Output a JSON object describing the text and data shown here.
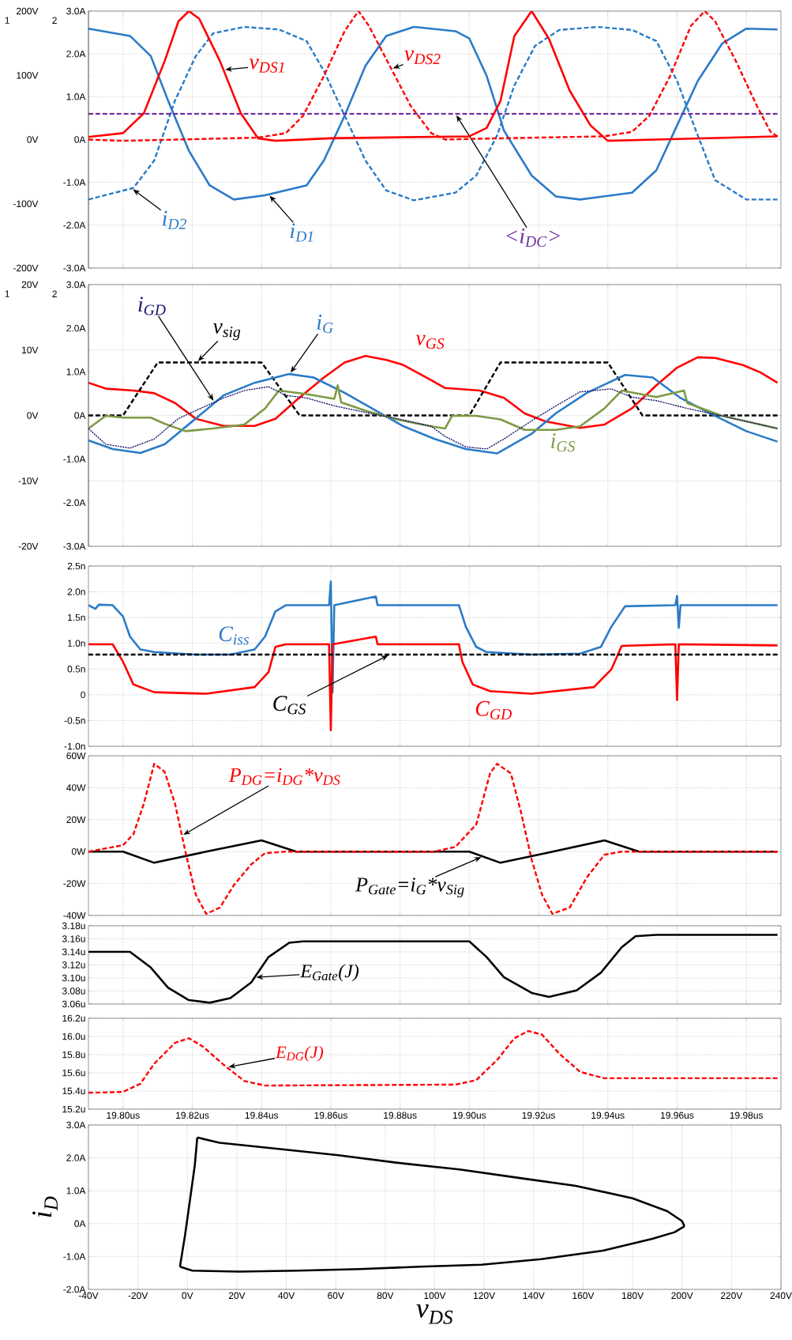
{
  "chart_data": [
    {
      "type": "line",
      "xlim": [
        19.79,
        19.99
      ],
      "ylim": [
        -3,
        3
      ],
      "y2lim": [
        -200,
        200
      ],
      "grid": true,
      "ylabel": "2",
      "y2label": "1",
      "tick_labels": "y",
      "xticks": [
        19.8,
        19.82,
        19.84,
        19.86,
        19.88,
        19.9,
        19.92,
        19.94,
        19.96,
        19.98
      ],
      "yticks": [
        {
          "value": -3,
          "label": "-3.0A"
        },
        {
          "value": -2,
          "label": "-2.0A"
        },
        {
          "value": -1,
          "label": "-1.0A"
        },
        {
          "value": 0,
          "label": "0A"
        },
        {
          "value": 1,
          "label": "1.0A"
        },
        {
          "value": 2,
          "label": "2.0A"
        },
        {
          "value": 3,
          "label": "3.0A"
        }
      ],
      "y2ticks": [
        {
          "value": -200,
          "label": "-200V"
        },
        {
          "value": -100,
          "label": "-100V"
        },
        {
          "value": 0,
          "label": "0V"
        },
        {
          "value": 100,
          "label": "100V"
        },
        {
          "value": 200,
          "label": "200V"
        }
      ],
      "series": [
        {
          "name": "v$_{DS1}$",
          "color": "#ff0000",
          "axis": "y2",
          "line_style": "solid",
          "x": [
            19.79,
            19.8,
            19.806,
            19.812,
            19.816,
            19.819,
            19.822,
            19.828,
            19.834,
            19.839,
            19.844,
            19.86,
            19.9,
            19.905,
            19.909,
            19.913,
            19.918,
            19.923,
            19.929,
            19.935,
            19.94,
            19.954,
            19.989
          ],
          "values": [
            4,
            10,
            41,
            122,
            184,
            200,
            188,
            122,
            41,
            2,
            -2,
            2,
            5,
            18,
            60,
            161,
            200,
            157,
            76,
            22,
            -2,
            0,
            5
          ]
        },
        {
          "name": "v$_{DS2}$",
          "color": "#ff0000",
          "axis": "y2",
          "line_style": "dashed",
          "x": [
            19.79,
            19.8,
            19.839,
            19.847,
            19.852,
            19.858,
            19.864,
            19.868,
            19.871,
            19.877,
            19.883,
            19.889,
            19.893,
            19.9,
            19.939,
            19.947,
            19.952,
            19.958,
            19.964,
            19.968,
            19.971,
            19.977,
            19.983,
            19.987,
            19.989
          ],
          "values": [
            0,
            -2,
            3,
            10,
            37,
            99,
            169,
            200,
            177,
            115,
            53,
            10,
            0,
            1,
            5,
            12,
            37,
            99,
            177,
            200,
            184,
            122,
            53,
            12,
            5
          ]
        },
        {
          "name": "i$_{D1}$",
          "color": "#2b7bc8",
          "line_style": "solid",
          "x": [
            19.79,
            19.802,
            19.808,
            19.813,
            19.819,
            19.825,
            19.832,
            19.841,
            19.853,
            19.858,
            19.864,
            19.87,
            19.876,
            19.884,
            19.896,
            19.9,
            19.905,
            19.91,
            19.918,
            19.925,
            19.932,
            19.947,
            19.954,
            19.96,
            19.966,
            19.973,
            19.98,
            19.989
          ],
          "values": [
            2.59,
            2.42,
            1.95,
            0.91,
            -0.26,
            -1.07,
            -1.4,
            -1.3,
            -1.07,
            -0.49,
            0.56,
            1.72,
            2.42,
            2.63,
            2.53,
            2.36,
            1.49,
            0.21,
            -0.84,
            -1.33,
            -1.4,
            -1.24,
            -0.72,
            0.33,
            1.37,
            2.24,
            2.59,
            2.57
          ]
        },
        {
          "name": "i$_{D2}$",
          "color": "#2b7bc8",
          "line_style": "dashed",
          "x": [
            19.79,
            19.803,
            19.809,
            19.815,
            19.821,
            19.826,
            19.835,
            19.845,
            19.853,
            19.858,
            19.864,
            19.87,
            19.876,
            19.884,
            19.896,
            19.902,
            19.908,
            19.913,
            19.919,
            19.926,
            19.937,
            19.947,
            19.954,
            19.96,
            19.966,
            19.971,
            19.98,
            19.989
          ],
          "values": [
            -1.4,
            -1.13,
            -0.49,
            0.91,
            1.95,
            2.48,
            2.63,
            2.57,
            2.3,
            1.6,
            0.56,
            -0.49,
            -1.19,
            -1.42,
            -1.24,
            -0.84,
            0.09,
            1.26,
            2.19,
            2.56,
            2.63,
            2.56,
            2.3,
            1.37,
            0.09,
            -0.95,
            -1.4,
            -1.4
          ]
        },
        {
          "name": "<i$_{DC}$>",
          "color": "#7030a0",
          "line_style": "dashed",
          "x": [
            19.79,
            19.989
          ],
          "values": [
            0.6,
            0.6
          ]
        }
      ]
    },
    {
      "type": "line",
      "xlim": [
        19.79,
        19.99
      ],
      "ylim": [
        -20,
        20
      ],
      "y2lim": [
        -3,
        3
      ],
      "grid": true,
      "ylabel": "1",
      "y2label": "2",
      "tick_labels": "y",
      "xticks": [
        19.8,
        19.82,
        19.84,
        19.86,
        19.88,
        19.9,
        19.92,
        19.94,
        19.96,
        19.98
      ],
      "yticks": [
        {
          "value": -20,
          "label": "-20V"
        },
        {
          "value": -10,
          "label": "-10V"
        },
        {
          "value": 0,
          "label": "0V"
        },
        {
          "value": 10,
          "label": "10V"
        },
        {
          "value": 20,
          "label": "20V"
        }
      ],
      "y2ticks": [
        {
          "value": -3,
          "label": "-3.0A"
        },
        {
          "value": -2,
          "label": "-2.0A"
        },
        {
          "value": -1,
          "label": "-1.0A"
        },
        {
          "value": 0,
          "label": "0A"
        },
        {
          "value": 1,
          "label": "1.0A"
        },
        {
          "value": 2,
          "label": "2.0A"
        },
        {
          "value": 3,
          "label": "3.0A"
        }
      ],
      "series": [
        {
          "name": "i$_{GD}$",
          "color": "#1a1a6e",
          "axis": "y2",
          "line_style": "dotted",
          "x": [
            19.79,
            19.795,
            19.802,
            19.809,
            19.816,
            19.824,
            19.829,
            19.835,
            19.842,
            19.847,
            19.853,
            19.861,
            19.87,
            19.879,
            19.889,
            19.893,
            19.899,
            19.905,
            19.91,
            19.919,
            19.925,
            19.932,
            19.941,
            19.947,
            19.954,
            19.963,
            19.973,
            19.983,
            19.989
          ],
          "values": [
            -0.3,
            -0.66,
            -0.75,
            -0.54,
            -0.07,
            0.22,
            0.4,
            0.57,
            0.66,
            0.46,
            0.4,
            0.22,
            0.07,
            -0.07,
            -0.25,
            -0.48,
            -0.72,
            -0.77,
            -0.54,
            -0.07,
            0.22,
            0.54,
            0.61,
            0.42,
            0.34,
            0.16,
            -0.01,
            -0.19,
            -0.3
          ]
        },
        {
          "name": "v$_{sig}$",
          "color": "#000000",
          "line_style": "dashed",
          "x": [
            19.79,
            19.8,
            19.81,
            19.84,
            19.851,
            19.9,
            19.909,
            19.94,
            19.95,
            19.989
          ],
          "values": [
            0,
            0,
            8.1,
            8.1,
            0,
            0,
            8.1,
            8.1,
            0,
            0
          ]
        },
        {
          "name": "i$_{G}$",
          "color": "#2b7bc8",
          "axis": "y2",
          "line_style": "solid",
          "x": [
            19.79,
            19.797,
            19.805,
            19.812,
            19.821,
            19.829,
            19.838,
            19.848,
            19.855,
            19.864,
            19.873,
            19.881,
            19.89,
            19.899,
            19.908,
            19.918,
            19.925,
            19.934,
            19.945,
            19.953,
            19.961,
            19.971,
            19.98,
            19.989
          ],
          "values": [
            -0.57,
            -0.77,
            -0.86,
            -0.66,
            -0.07,
            0.46,
            0.75,
            0.95,
            0.87,
            0.52,
            0.11,
            -0.25,
            -0.54,
            -0.77,
            -0.87,
            -0.42,
            0.05,
            0.52,
            0.93,
            0.87,
            0.4,
            -0.01,
            -0.36,
            -0.6
          ]
        },
        {
          "name": "v$_{GS}$",
          "color": "#ff0000",
          "line_style": "solid",
          "x": [
            19.79,
            19.795,
            19.803,
            19.809,
            19.815,
            19.821,
            19.829,
            19.838,
            19.844,
            19.85,
            19.858,
            19.864,
            19.87,
            19.876,
            19.881,
            19.889,
            19.893,
            19.903,
            19.91,
            19.916,
            19.922,
            19.932,
            19.939,
            19.947,
            19.954,
            19.96,
            19.966,
            19.971,
            19.979,
            19.984,
            19.989
          ],
          "values": [
            5.0,
            4.1,
            3.8,
            3.4,
            1.9,
            -0.5,
            -1.6,
            -1.6,
            -0.5,
            2.3,
            5.8,
            8.1,
            9.1,
            8.5,
            7.7,
            5.4,
            4.2,
            3.8,
            2.7,
            0.3,
            -0.9,
            -1.9,
            -1.4,
            1.1,
            4.6,
            7.3,
            8.9,
            8.8,
            7.7,
            6.6,
            5.0
          ]
        },
        {
          "name": "i$_{GS}$",
          "color": "#7f9a44",
          "axis": "y2",
          "line_style": "solid",
          "x": [
            19.79,
            19.795,
            19.8,
            19.808,
            19.812,
            19.818,
            19.826,
            19.835,
            19.841,
            19.845,
            19.853,
            19.861,
            19.862,
            19.863,
            19.87,
            19.879,
            19.889,
            19.893,
            19.895,
            19.902,
            19.909,
            19.916,
            19.925,
            19.932,
            19.939,
            19.944,
            19.954,
            19.962,
            19.963,
            19.973,
            19.989
          ],
          "values": [
            -0.3,
            -0.01,
            -0.05,
            -0.05,
            -0.19,
            -0.36,
            -0.3,
            -0.21,
            0.16,
            0.57,
            0.49,
            0.38,
            0.69,
            0.3,
            0.11,
            -0.09,
            -0.25,
            -0.3,
            -0.01,
            -0.01,
            -0.09,
            -0.33,
            -0.33,
            -0.25,
            0.16,
            0.57,
            0.42,
            0.57,
            0.28,
            -0.01,
            -0.3
          ]
        }
      ]
    },
    {
      "type": "line",
      "xlim": [
        19.79,
        19.99
      ],
      "ylim": [
        -1,
        2.5
      ],
      "grid": true,
      "tick_labels": "y",
      "xticks": [
        19.8,
        19.82,
        19.84,
        19.86,
        19.88,
        19.9,
        19.92,
        19.94,
        19.96,
        19.98
      ],
      "yticks": [
        {
          "value": -1,
          "label": "-1.0n"
        },
        {
          "value": -0.5,
          "label": "-0.5n"
        },
        0,
        {
          "value": 0.5,
          "label": "0.5n"
        },
        {
          "value": 1,
          "label": "1.0n"
        },
        {
          "value": 1.5,
          "label": "1.5n"
        },
        {
          "value": 2,
          "label": "2.0n"
        },
        {
          "value": 2.5,
          "label": "2.5n"
        }
      ],
      "series": [
        {
          "name": "C$_{iss}$",
          "color": "#2b7bc8",
          "line_style": "solid",
          "x": [
            19.79,
            19.792,
            19.793,
            19.797,
            19.8,
            19.802,
            19.805,
            19.809,
            19.821,
            19.831,
            19.838,
            19.841,
            19.844,
            19.847,
            19.8595,
            19.86,
            19.8605,
            19.861,
            19.873,
            19.8735,
            19.897,
            19.899,
            19.902,
            19.905,
            19.918,
            19.932,
            19.938,
            19.941,
            19.945,
            19.9595,
            19.96,
            19.9605,
            19.961,
            19.989
          ],
          "values": [
            1.74,
            1.67,
            1.75,
            1.74,
            1.52,
            1.13,
            0.88,
            0.83,
            0.78,
            0.78,
            0.88,
            1.13,
            1.62,
            1.74,
            1.74,
            2.2,
            0.05,
            1.74,
            1.91,
            1.74,
            1.74,
            1.32,
            0.93,
            0.83,
            0.78,
            0.8,
            0.93,
            1.32,
            1.72,
            1.74,
            1.92,
            1.3,
            1.74,
            1.74
          ]
        },
        {
          "name": "C$_{GD}$",
          "color": "#ff0000",
          "line_style": "solid",
          "x": [
            19.79,
            19.797,
            19.8,
            19.803,
            19.809,
            19.824,
            19.838,
            19.842,
            19.844,
            19.847,
            19.8595,
            19.86,
            19.8605,
            19.873,
            19.8735,
            19.897,
            19.898,
            19.901,
            19.906,
            19.918,
            19.936,
            19.941,
            19.944,
            19.9595,
            19.96,
            19.9605,
            19.989
          ],
          "values": [
            0.98,
            0.98,
            0.64,
            0.2,
            0.05,
            0.02,
            0.15,
            0.44,
            0.93,
            0.98,
            0.98,
            -0.69,
            0.98,
            1.13,
            0.98,
            0.98,
            0.64,
            0.2,
            0.07,
            0.02,
            0.15,
            0.49,
            0.95,
            0.98,
            -0.1,
            0.98,
            0.96
          ]
        },
        {
          "name": "C$_{GS}$",
          "color": "#000000",
          "line_style": "dashed",
          "x": [
            19.79,
            19.989
          ],
          "values": [
            0.78,
            0.78
          ]
        }
      ]
    },
    {
      "type": "line",
      "xlim": [
        19.79,
        19.99
      ],
      "ylim": [
        -40,
        60
      ],
      "grid": true,
      "tick_labels": "y",
      "xticks": [
        19.8,
        19.82,
        19.84,
        19.86,
        19.88,
        19.9,
        19.92,
        19.94,
        19.96,
        19.98
      ],
      "yticks": [
        {
          "value": -40,
          "label": "-40W"
        },
        {
          "value": -20,
          "label": "-20W"
        },
        {
          "value": 0,
          "label": "0W"
        },
        {
          "value": 20,
          "label": "20W"
        },
        {
          "value": 40,
          "label": "40W"
        },
        {
          "value": 60,
          "label": "60W"
        }
      ],
      "series": [
        {
          "name": "P$_{DG}$=i$_{DG}$*v$_{DS}$",
          "color": "#ff0000",
          "line_style": "dashed",
          "x": [
            19.79,
            19.8,
            19.803,
            19.806,
            19.809,
            19.812,
            19.815,
            19.818,
            19.821,
            19.824,
            19.828,
            19.832,
            19.837,
            19.841,
            19.847,
            19.89,
            19.896,
            19.902,
            19.906,
            19.908,
            19.912,
            19.915,
            19.918,
            19.921,
            19.924,
            19.929,
            19.934,
            19.939,
            19.944,
            19.989
          ],
          "values": [
            0,
            4,
            11,
            30,
            55,
            50,
            30,
            0,
            -27,
            -39,
            -35,
            -21,
            -8,
            -1,
            0,
            0,
            3,
            17,
            49,
            55,
            49,
            24,
            -5,
            -27,
            -39,
            -35,
            -16,
            -2,
            0,
            0
          ]
        },
        {
          "name": "P$_{Gate}$=i$_{G}$*v$_{Sig}$",
          "color": "#000000",
          "line_style": "solid",
          "x": [
            19.79,
            19.8,
            19.809,
            19.824,
            19.84,
            19.85,
            19.9,
            19.909,
            19.922,
            19.939,
            19.949,
            19.989
          ],
          "values": [
            0,
            0,
            -7,
            0,
            7,
            0,
            0,
            -7,
            -1,
            7,
            0,
            0
          ]
        }
      ]
    },
    {
      "type": "line",
      "xlim": [
        19.79,
        19.99
      ],
      "ylim": [
        3.06,
        3.18
      ],
      "grid": true,
      "tick_labels": "y",
      "xticks": [
        19.8,
        19.82,
        19.84,
        19.86,
        19.88,
        19.9,
        19.92,
        19.94,
        19.96,
        19.98
      ],
      "yticks": [
        {
          "value": 3.06,
          "label": "3.06u"
        },
        {
          "value": 3.08,
          "label": "3.08u"
        },
        {
          "value": 3.1,
          "label": "3.10u"
        },
        {
          "value": 3.12,
          "label": "3.12u"
        },
        {
          "value": 3.14,
          "label": "3.14u"
        },
        {
          "value": 3.16,
          "label": "3.16u"
        },
        {
          "value": 3.18,
          "label": "3.18u"
        }
      ],
      "series": [
        {
          "name": "E$_{Gate}$(J)",
          "color": "#000000",
          "line_style": "solid",
          "x": [
            19.79,
            19.802,
            19.808,
            19.813,
            19.819,
            19.825,
            19.831,
            19.837,
            19.842,
            19.848,
            19.852,
            19.9,
            19.905,
            19.91,
            19.918,
            19.923,
            19.931,
            19.938,
            19.944,
            19.948,
            19.954,
            19.989
          ],
          "values": [
            3.14,
            3.14,
            3.116,
            3.085,
            3.066,
            3.062,
            3.069,
            3.093,
            3.132,
            3.154,
            3.156,
            3.156,
            3.132,
            3.101,
            3.077,
            3.071,
            3.081,
            3.108,
            3.147,
            3.164,
            3.166,
            3.166
          ]
        }
      ]
    },
    {
      "type": "line",
      "xlim": [
        19.79,
        19.99
      ],
      "ylim": [
        15.2,
        16.2
      ],
      "grid": true,
      "xticks": [
        {
          "value": 19.8,
          "label": "19.80us"
        },
        {
          "value": 19.82,
          "label": "19.82us"
        },
        {
          "value": 19.84,
          "label": "19.84us"
        },
        {
          "value": 19.86,
          "label": "19.86us"
        },
        {
          "value": 19.88,
          "label": "19.88us"
        },
        {
          "value": 19.9,
          "label": "19.90us"
        },
        {
          "value": 19.92,
          "label": "19.92us"
        },
        {
          "value": 19.94,
          "label": "19.94us"
        },
        {
          "value": 19.96,
          "label": "19.96us"
        },
        {
          "value": 19.98,
          "label": "19.98us"
        }
      ],
      "yticks": [
        {
          "value": 15.2,
          "label": "15.2u"
        },
        {
          "value": 15.4,
          "label": "15.4u"
        },
        {
          "value": 15.6,
          "label": "15.6u"
        },
        {
          "value": 15.8,
          "label": "15.8u"
        },
        {
          "value": 16.0,
          "label": "16.0u"
        },
        {
          "value": 16.2,
          "label": "16.2u"
        }
      ],
      "series": [
        {
          "name": "E$_{DG}$(J)",
          "color": "#ff0000",
          "line_style": "dashed",
          "x": [
            19.79,
            19.8,
            19.805,
            19.809,
            19.815,
            19.819,
            19.823,
            19.829,
            19.835,
            19.841,
            19.896,
            19.902,
            19.908,
            19.913,
            19.917,
            19.921,
            19.926,
            19.932,
            19.939,
            19.989
          ],
          "values": [
            15.38,
            15.39,
            15.48,
            15.7,
            15.93,
            15.98,
            15.89,
            15.69,
            15.51,
            15.46,
            15.47,
            15.52,
            15.74,
            15.98,
            16.06,
            16.02,
            15.81,
            15.61,
            15.54,
            15.54
          ]
        }
      ]
    },
    {
      "type": "line",
      "xlim": [
        -40,
        240
      ],
      "ylim": [
        -2,
        3
      ],
      "grid": true,
      "xlabel": "v$_{DS}$",
      "ylabel": "i$_{D}$",
      "xticks": [
        {
          "value": -40,
          "label": "-40V"
        },
        {
          "value": -20,
          "label": "-20V"
        },
        {
          "value": 0,
          "label": "0V"
        },
        {
          "value": 20,
          "label": "20V"
        },
        {
          "value": 40,
          "label": "40V"
        },
        {
          "value": 60,
          "label": "60V"
        },
        {
          "value": 80,
          "label": "80V"
        },
        {
          "value": 100,
          "label": "100V"
        },
        {
          "value": 120,
          "label": "120V"
        },
        {
          "value": 140,
          "label": "140V"
        },
        {
          "value": 160,
          "label": "160V"
        },
        {
          "value": 180,
          "label": "180V"
        },
        {
          "value": 200,
          "label": "200V"
        },
        {
          "value": 220,
          "label": "220V"
        },
        {
          "value": 240,
          "label": "240V"
        }
      ],
      "yticks": [
        {
          "value": -2,
          "label": "-2.0A"
        },
        {
          "value": -1,
          "label": "-1.0A"
        },
        {
          "value": 0,
          "label": "0A"
        },
        {
          "value": 1,
          "label": "1.0A"
        },
        {
          "value": 2,
          "label": "2.0A"
        },
        {
          "value": 3,
          "label": "3.0A"
        }
      ],
      "series": [
        {
          "color": "#000000",
          "line_style": "solid",
          "x": [
            4,
            13,
            36,
            61,
            85,
            110,
            135,
            157,
            180,
            194,
            200,
            201
          ],
          "values": [
            2.62,
            2.46,
            2.28,
            2.08,
            1.85,
            1.65,
            1.38,
            1.15,
            0.77,
            0.38,
            0.08,
            -0.08
          ]
        },
        {
          "color": "#000000",
          "line_style": "solid",
          "x": [
            201,
            197,
            188,
            168,
            143,
            119,
            94,
            70,
            45,
            21,
            2,
            -3
          ],
          "values": [
            -0.08,
            -0.26,
            -0.46,
            -0.82,
            -1.08,
            -1.25,
            -1.31,
            -1.38,
            -1.43,
            -1.46,
            -1.43,
            -1.31
          ]
        },
        {
          "color": "#000000",
          "line_style": "solid",
          "x": [
            -3,
            -1,
            1,
            3,
            4
          ],
          "values": [
            -1.31,
            -0.38,
            0.69,
            1.77,
            2.62
          ]
        }
      ]
    }
  ]
}
